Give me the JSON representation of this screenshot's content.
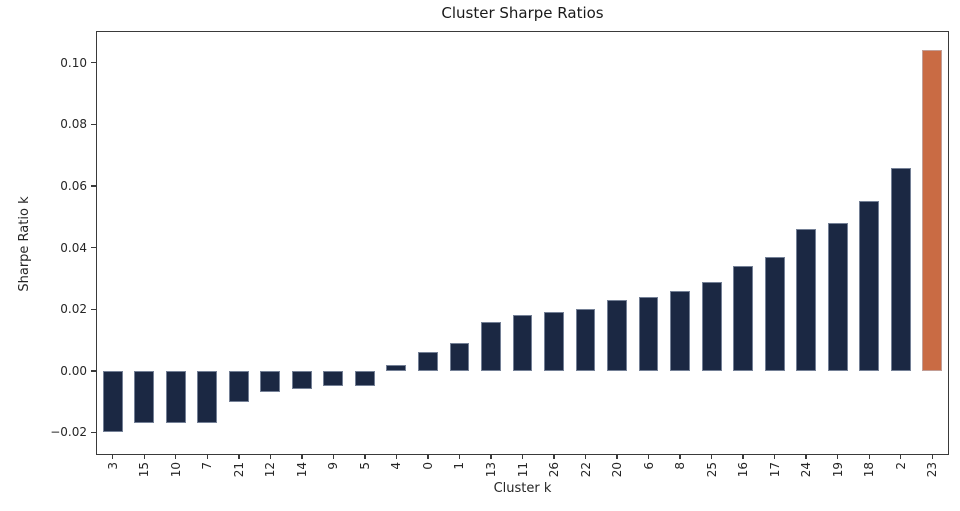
{
  "title": "Cluster Sharpe Ratios",
  "axes": {
    "xlabel": "Cluster k",
    "ylabel": "Sharpe Ratio k"
  },
  "chart_data": {
    "type": "bar",
    "title": "Cluster Sharpe Ratios",
    "xlabel": "Cluster k",
    "ylabel": "Sharpe Ratio k",
    "categories": [
      "3",
      "15",
      "10",
      "7",
      "21",
      "12",
      "14",
      "9",
      "5",
      "4",
      "0",
      "1",
      "13",
      "11",
      "26",
      "22",
      "20",
      "6",
      "8",
      "25",
      "16",
      "17",
      "24",
      "19",
      "18",
      "2",
      "23"
    ],
    "values": [
      -0.02,
      -0.017,
      -0.017,
      -0.017,
      -0.01,
      -0.007,
      -0.006,
      -0.005,
      -0.005,
      0.002,
      0.006,
      0.009,
      0.016,
      0.018,
      0.019,
      0.02,
      0.023,
      0.024,
      0.026,
      0.029,
      0.034,
      0.037,
      0.046,
      0.048,
      0.055,
      0.066,
      0.104
    ],
    "highlight_category": "23",
    "colors": {
      "bar": "#1b2843",
      "highlight": "#c96b44",
      "axis": "#3a3a3a",
      "text": "#262626"
    },
    "ylim": [
      -0.027,
      0.11
    ],
    "yticks": [
      0.1,
      0.08,
      0.06,
      0.04,
      0.02,
      0.0,
      -0.02
    ],
    "ytick_labels": [
      "0.10",
      "0.08",
      "0.06",
      "0.04",
      "0.02",
      "0.00",
      "−0.02"
    ],
    "xticks_rotation": 90,
    "grid": false,
    "legend": null
  }
}
